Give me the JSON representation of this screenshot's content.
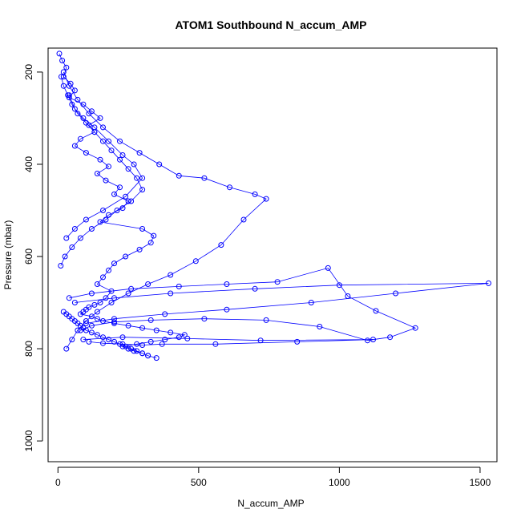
{
  "chart_data": {
    "type": "line",
    "title": "ATOM1 Southbound N_accum_AMP",
    "xlabel": "N_accum_AMP",
    "ylabel": "Pressure (mbar)",
    "xlim": [
      -35,
      1560
    ],
    "ylim": [
      1045,
      148
    ],
    "y_reversed": true,
    "xticks": [
      0,
      500,
      1000,
      1500
    ],
    "yticks": [
      200,
      400,
      600,
      800,
      1000
    ],
    "grid": false,
    "marker": "open-circle",
    "color": "#0000ff",
    "series": [
      {
        "x": [
          5,
          15,
          30,
          20,
          45,
          60,
          40,
          90,
          120,
          150,
          110,
          130,
          80,
          60,
          100,
          150,
          180,
          140,
          170,
          220,
          200,
          250,
          230,
          180,
          150,
          300,
          340,
          330,
          290,
          240,
          200,
          180,
          160,
          140,
          190,
          170,
          150,
          130,
          110,
          100,
          90,
          80,
          120,
          140,
          160,
          200,
          250,
          300,
          350,
          400,
          450,
          430,
          380,
          330,
          280,
          230,
          250,
          270,
          300,
          320,
          350,
          320,
          300,
          280,
          260,
          240,
          220,
          200,
          180,
          160,
          140,
          120,
          100,
          90,
          80,
          70,
          60,
          50,
          40,
          30,
          20
        ],
        "y": [
          160,
          175,
          190,
          210,
          225,
          240,
          255,
          270,
          285,
          300,
          315,
          330,
          345,
          360,
          375,
          390,
          405,
          420,
          435,
          450,
          465,
          480,
          495,
          510,
          525,
          540,
          555,
          570,
          585,
          600,
          615,
          630,
          645,
          660,
          675,
          690,
          700,
          705,
          710,
          715,
          720,
          725,
          730,
          735,
          740,
          745,
          750,
          755,
          760,
          765,
          770,
          775,
          780,
          785,
          790,
          795,
          800,
          805,
          810,
          815,
          820,
          815,
          810,
          805,
          800,
          795,
          790,
          785,
          780,
          775,
          770,
          765,
          760,
          755,
          750,
          745,
          740,
          735,
          730,
          725,
          720
        ]
      },
      {
        "x": [
          20,
          40,
          70,
          110,
          160,
          220,
          290,
          360,
          430,
          520,
          610,
          700,
          740,
          660,
          580,
          490,
          400,
          320,
          250,
          190,
          140,
          100,
          70,
          50,
          30
        ],
        "y": [
          200,
          230,
          260,
          290,
          320,
          350,
          375,
          400,
          425,
          430,
          450,
          465,
          475,
          520,
          575,
          610,
          640,
          660,
          680,
          700,
          720,
          740,
          760,
          780,
          800
        ]
      },
      {
        "x": [
          40,
          120,
          260,
          430,
          600,
          780,
          960,
          1030,
          1130,
          1270,
          1180,
          1100,
          930,
          740,
          520,
          330,
          200,
          120,
          80
        ],
        "y": [
          690,
          680,
          670,
          665,
          660,
          655,
          625,
          686,
          718,
          755,
          775,
          782,
          752,
          738,
          735,
          738,
          742,
          750,
          760
        ]
      },
      {
        "x": [
          60,
          200,
          400,
          700,
          1000,
          1530,
          1200,
          900,
          600,
          380,
          200,
          100
        ],
        "y": [
          700,
          690,
          680,
          670,
          662,
          658,
          680,
          700,
          715,
          725,
          735,
          745
        ]
      },
      {
        "x": [
          90,
          230,
          460,
          720,
          1120,
          850,
          560,
          370,
          300,
          230,
          160,
          110
        ],
        "y": [
          780,
          775,
          778,
          782,
          780,
          785,
          790,
          790,
          792,
          790,
          788,
          785
        ]
      },
      {
        "x": [
          30,
          60,
          100,
          160,
          240,
          300,
          270,
          230,
          180,
          130,
          90,
          60,
          40
        ],
        "y": [
          560,
          540,
          520,
          500,
          470,
          430,
          400,
          380,
          350,
          320,
          300,
          280,
          250
        ]
      },
      {
        "x": [
          10,
          25,
          50,
          80,
          120,
          170,
          210,
          260,
          300,
          280,
          250,
          220,
          190,
          160,
          130,
          100,
          70,
          50,
          35,
          20,
          12
        ],
        "y": [
          620,
          600,
          580,
          560,
          540,
          520,
          500,
          480,
          455,
          430,
          410,
          390,
          370,
          350,
          330,
          310,
          290,
          270,
          250,
          230,
          210
        ]
      }
    ]
  }
}
